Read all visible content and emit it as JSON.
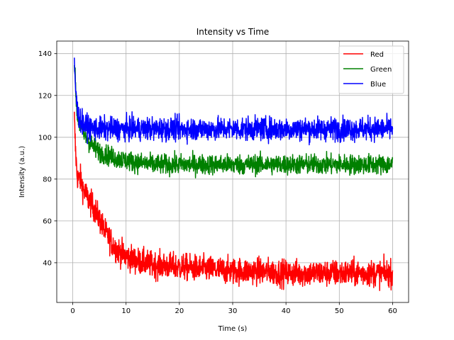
{
  "chart_data": {
    "type": "line",
    "title": "Intensity vs Time",
    "xlabel": "Time (s)",
    "ylabel": "Intensity (a.u.)",
    "xlim": [
      -3,
      63
    ],
    "ylim": [
      21,
      146
    ],
    "xticks": [
      0,
      10,
      20,
      30,
      40,
      50,
      60
    ],
    "yticks": [
      40,
      60,
      80,
      100,
      120,
      140
    ],
    "grid": true,
    "legend_position": "top-right",
    "x": [
      0.3,
      0.5,
      0.8,
      1,
      1.5,
      2,
      3,
      4,
      5,
      6,
      7,
      8,
      10,
      12,
      15,
      20,
      25,
      30,
      35,
      40,
      45,
      50,
      55,
      60
    ],
    "series": [
      {
        "name": "Red",
        "color": "#ff0000",
        "values": [
          109,
          95,
          82,
          80,
          80,
          75,
          70,
          66,
          61,
          55,
          51,
          47,
          43,
          41,
          39,
          38,
          37,
          36,
          36,
          35,
          35,
          35,
          35,
          35
        ],
        "noise": 3.2
      },
      {
        "name": "Green",
        "color": "#008000",
        "values": [
          137,
          125,
          112,
          108,
          105,
          102,
          98,
          95,
          93,
          92,
          91,
          90,
          89,
          88,
          87,
          87,
          87,
          87,
          87,
          87,
          87,
          87,
          87,
          87
        ],
        "noise": 2.4
      },
      {
        "name": "Blue",
        "color": "#0000ff",
        "values": [
          136,
          125,
          114,
          111,
          108,
          106,
          105,
          104,
          104,
          104,
          104,
          104,
          104,
          104,
          104,
          104,
          104,
          104,
          104,
          104,
          104,
          104,
          104,
          104
        ],
        "noise": 2.8
      }
    ]
  }
}
